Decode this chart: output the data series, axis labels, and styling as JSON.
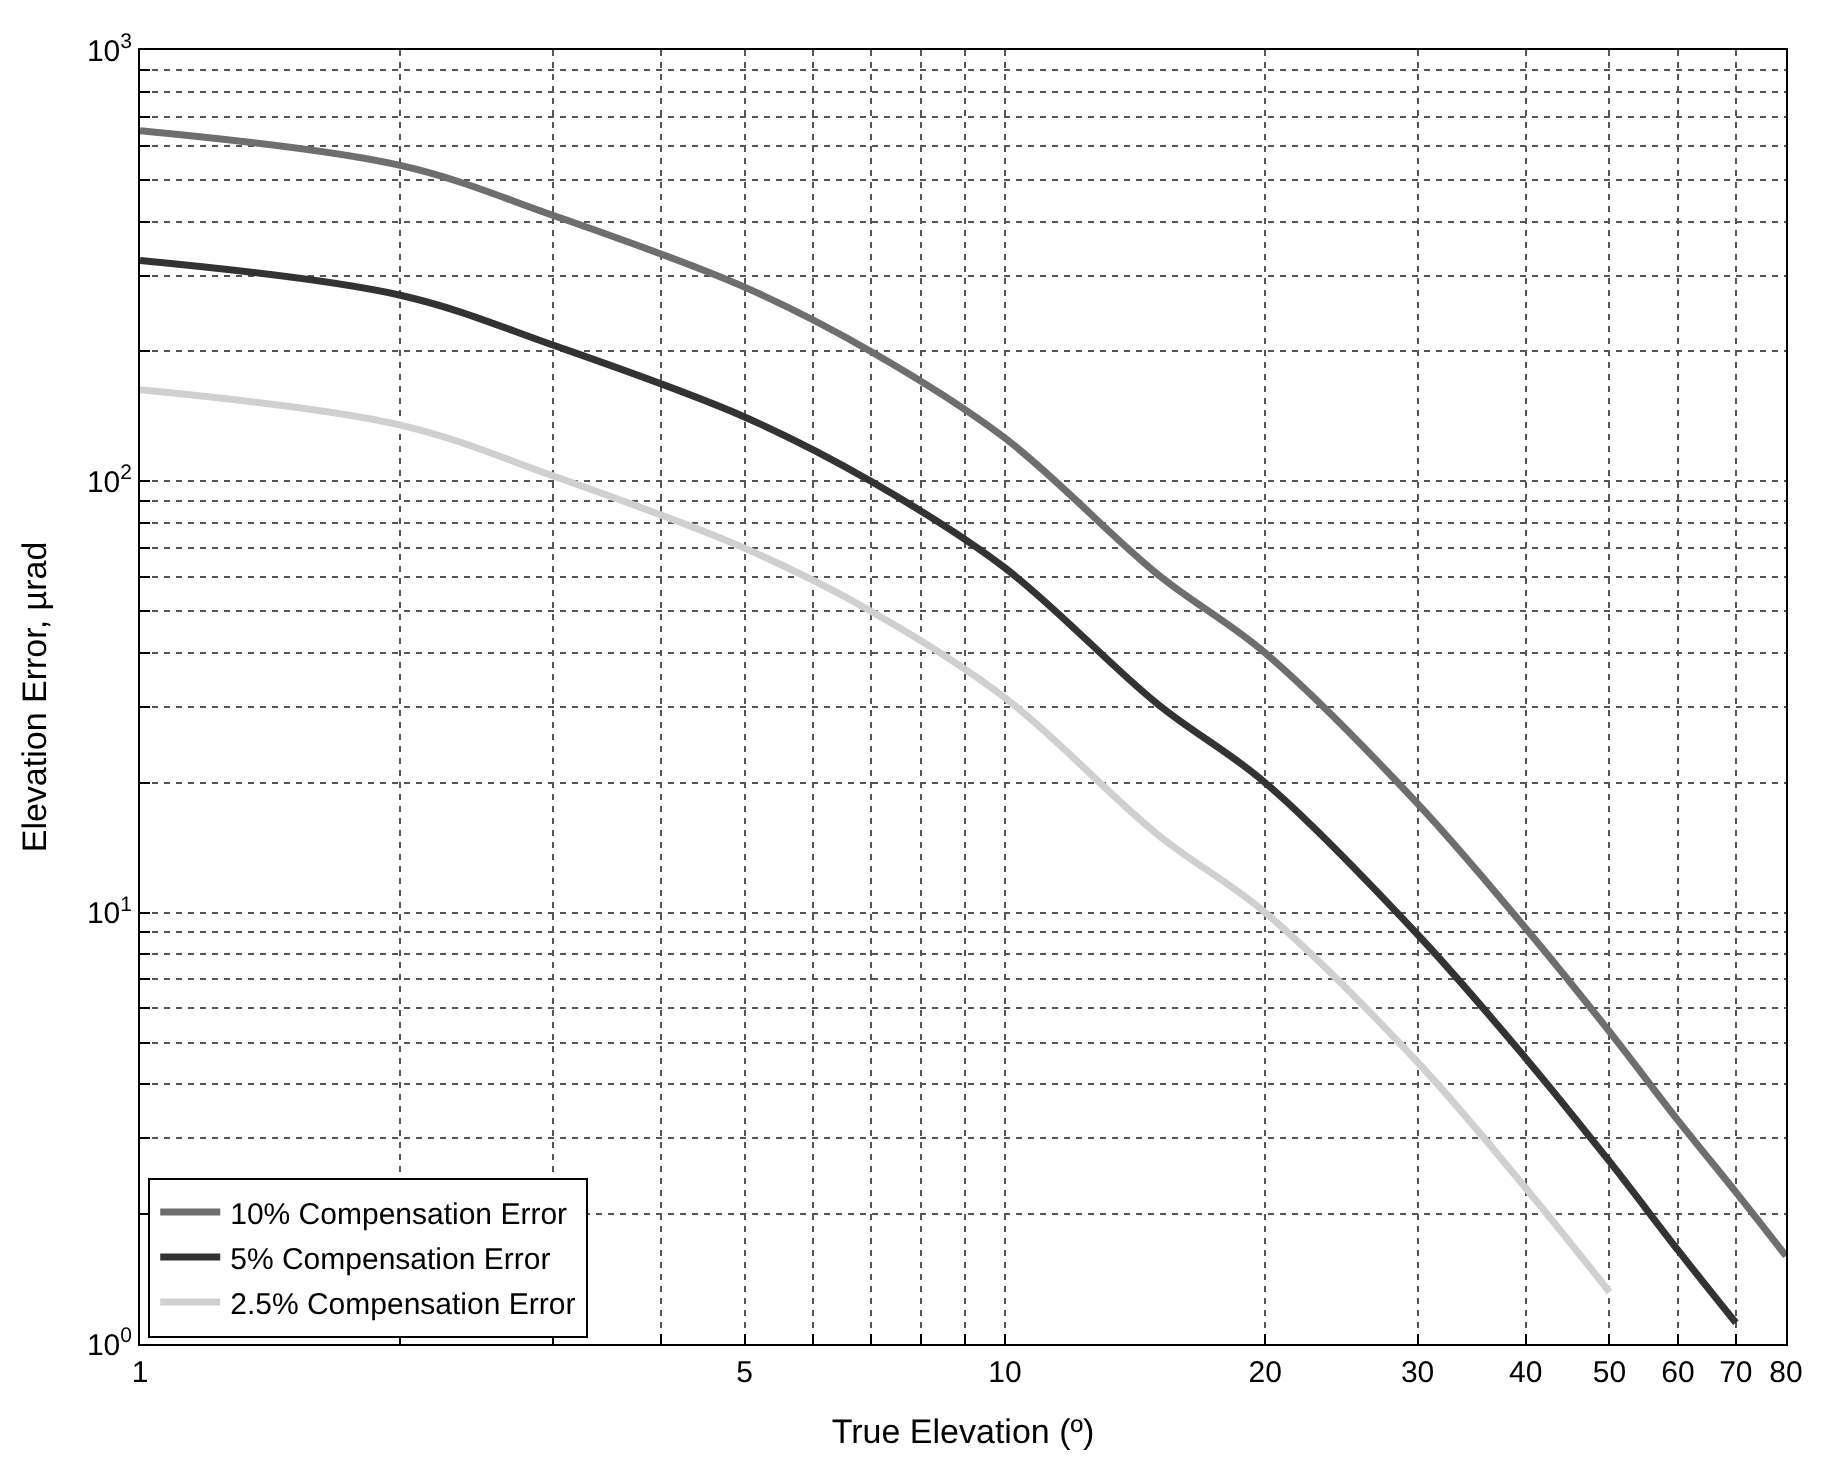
{
  "chart_data": {
    "type": "line",
    "xlabel": "True Elevation (º)",
    "ylabel": "Elevation Error, µrad",
    "log": "xy",
    "grid": true,
    "legend": "bottom left",
    "line_style": "solid",
    "marker": "none",
    "x": [
      1,
      2,
      3,
      5,
      7,
      10,
      15,
      20,
      30,
      40,
      50,
      60,
      70,
      80
    ],
    "xlim": [
      1,
      80
    ],
    "ylim": [
      1,
      1000
    ],
    "xticks": [
      1,
      {
        "value": 2,
        "label": null
      },
      {
        "value": 3,
        "label": null
      },
      {
        "value": 4,
        "label": null
      },
      5,
      {
        "value": 6,
        "label": null
      },
      {
        "value": 7,
        "label": null
      },
      {
        "value": 8,
        "label": null
      },
      {
        "value": 9,
        "label": null
      },
      10,
      20,
      30,
      40,
      50,
      60,
      70,
      80
    ],
    "yticks": [
      {
        "value": 1,
        "label": "10$^{0}$"
      },
      {
        "value": 2,
        "label": null
      },
      {
        "value": 3,
        "label": null
      },
      {
        "value": 4,
        "label": null
      },
      {
        "value": 5,
        "label": null
      },
      {
        "value": 6,
        "label": null
      },
      {
        "value": 7,
        "label": null
      },
      {
        "value": 8,
        "label": null
      },
      {
        "value": 9,
        "label": null
      },
      {
        "value": 10,
        "label": "10$^{1}$"
      },
      {
        "value": 20,
        "label": null
      },
      {
        "value": 30,
        "label": null
      },
      {
        "value": 40,
        "label": null
      },
      {
        "value": 50,
        "label": null
      },
      {
        "value": 60,
        "label": null
      },
      {
        "value": 70,
        "label": null
      },
      {
        "value": 80,
        "label": null
      },
      {
        "value": 90,
        "label": null
      },
      {
        "value": 100,
        "label": "10$^{2}$"
      },
      {
        "value": 200,
        "label": null
      },
      {
        "value": 300,
        "label": null
      },
      {
        "value": 400,
        "label": null
      },
      {
        "value": 500,
        "label": null
      },
      {
        "value": 600,
        "label": null
      },
      {
        "value": 700,
        "label": null
      },
      {
        "value": 800,
        "label": null
      },
      {
        "value": 900,
        "label": null
      },
      {
        "value": 1000,
        "label": "10$^{3}$"
      }
    ],
    "series": [
      {
        "name": "10% Compensation Error",
        "color": "#6e6e6e",
        "values": [
          650,
          540,
          414,
          282,
          200,
          126,
          61,
          40,
          17.9,
          9.2,
          5.3,
          3.3,
          2.25,
          1.6
        ]
      },
      {
        "name": "5% Compensation Error",
        "color": "#333333",
        "values": [
          325,
          270,
          207,
          141,
          100,
          63,
          30.5,
          20,
          8.9,
          4.6,
          2.65,
          1.65,
          1.12,
          null
        ]
      },
      {
        "name": "2.5% Compensation Error",
        "color": "#d0d0d0",
        "values": [
          163,
          135,
          103,
          70,
          50,
          31.5,
          15.2,
          10,
          4.5,
          2.3,
          1.32,
          null,
          null,
          null
        ]
      }
    ]
  }
}
